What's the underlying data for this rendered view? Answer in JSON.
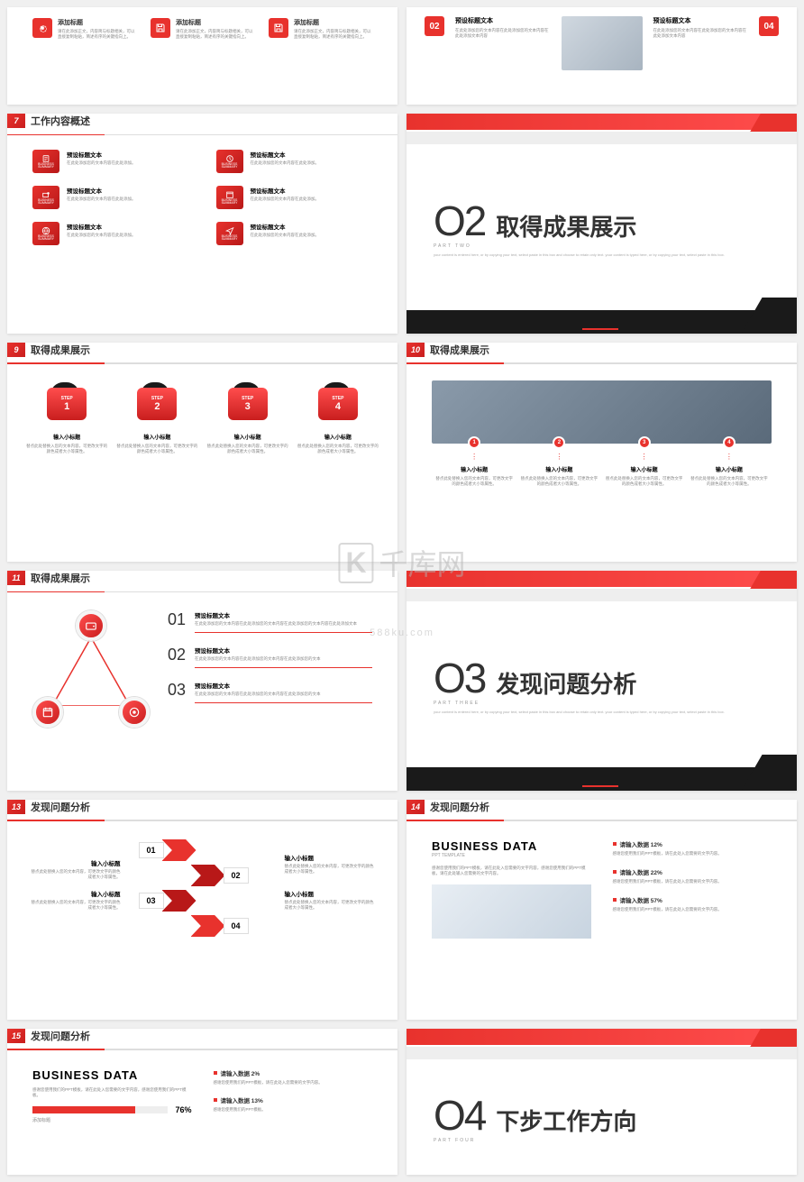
{
  "watermark": {
    "main": "千库网",
    "sub": "588ku.com",
    "logo": "K"
  },
  "colors": {
    "primary": "#e8322d",
    "dark": "#1a1a1a",
    "text": "#333",
    "muted": "#888"
  },
  "s5": {
    "icons": [
      {
        "title": "添加标题",
        "desc": "请在此添加正文，内容简与标题相关，可以直接复制粘贴，简述有序的关键指向上。"
      },
      {
        "title": "添加标题",
        "desc": "请在此添加正文，内容简与标题相关，可以直接复制粘贴，简述有序的关键指向上。"
      },
      {
        "title": "添加标题",
        "desc": "请在此添加正文，内容简与标题相关，可以直接复制粘贴，简述有序的关键指向上。"
      }
    ]
  },
  "s6": {
    "items": [
      {
        "n": "02",
        "t": "预设标题文本",
        "d": "在此处添加您的文本内容在此处添加您的文本内容在此处添加文本内容"
      },
      {
        "n": "04",
        "t": "预设标题文本",
        "d": "在此处添加您的文本内容在此处添加您的文本内容在此处添加文本内容"
      }
    ]
  },
  "s7": {
    "num": "7",
    "title": "工作内容概述",
    "items": [
      {
        "label": "BUSINESS SUMMARY",
        "t": "预设标题文本",
        "d": "在此处添加您的文本内容在此处添加。"
      },
      {
        "label": "BUSINESS SUMMARY",
        "t": "预设标题文本",
        "d": "在此处添加您的文本内容在此处添加。"
      },
      {
        "label": "BUSINESS SUMMARY",
        "t": "预设标题文本",
        "d": "在此处添加您的文本内容在此处添加。"
      },
      {
        "label": "BUSINESS SUMMARY",
        "t": "预设标题文本",
        "d": "在此处添加您的文本内容在此处添加。"
      },
      {
        "label": "BUSINESS SUMMARY",
        "t": "预设标题文本",
        "d": "在此处添加您的文本内容在此处添加。"
      },
      {
        "label": "BUSINESS SUMMARY",
        "t": "预设标题文本",
        "d": "在此处添加您的文本内容在此处添加。"
      }
    ]
  },
  "s8": {
    "num": "O2",
    "title": "取得成果展示",
    "part": "PART TWO",
    "desc": "your content is entered here, or by copying your text, select paste in this box and choose to retain only text. your content is typed here, or by copying your text, select paste in this box."
  },
  "s9": {
    "num": "9",
    "title": "取得成果展示",
    "steps": [
      {
        "label": "STEP",
        "n": "1",
        "t": "输入小标题",
        "d": "替点此处替换入您的文本内容，可更改文字的颜色成者大小等属性。"
      },
      {
        "label": "STEP",
        "n": "2",
        "t": "输入小标题",
        "d": "替点此处替换入您的文本内容，可更改文字的颜色成者大小等属性。"
      },
      {
        "label": "STEP",
        "n": "3",
        "t": "输入小标题",
        "d": "替点此处替换入您的文本内容，可更改文字的颜色成者大小等属性。"
      },
      {
        "label": "STEP",
        "n": "4",
        "t": "输入小标题",
        "d": "替点此处替换入您的文本内容，可更改文字的颜色成者大小等属性。"
      }
    ]
  },
  "s10": {
    "num": "10",
    "title": "取得成果展示",
    "cols": [
      {
        "n": "1",
        "t": "输入小标题",
        "d": "替点此处替换入您的文本内容，可更改文字的颜色成者大小等属性。"
      },
      {
        "n": "2",
        "t": "输入小标题",
        "d": "替点此处替换入您的文本内容，可更改文字的颜色成者大小等属性。"
      },
      {
        "n": "3",
        "t": "输入小标题",
        "d": "替点此处替换入您的文本内容，可更改文字的颜色成者大小等属性。"
      },
      {
        "n": "4",
        "t": "输入小标题",
        "d": "替点此处替换入您的文本内容，可更改文字的颜色成者大小等属性。"
      }
    ]
  },
  "s11": {
    "num": "11",
    "title": "取得成果展示",
    "items": [
      {
        "n": "01",
        "t": "预设标题文本",
        "d": "在此处添加您的文本内容在此处添加您的文本内容在此处添加您的文本内容在此处添加文本"
      },
      {
        "n": "02",
        "t": "预设标题文本",
        "d": "在此处添加您的文本内容在此处添加您的文本内容在此处添加您的文本"
      },
      {
        "n": "03",
        "t": "预设标题文本",
        "d": "在此处添加您的文本内容在此处添加您的文本内容在此处添加您的文本"
      }
    ]
  },
  "s12": {
    "num": "O3",
    "title": "发现问题分析",
    "part": "PART THREE",
    "desc": "your content is entered here, or by copying your text, select paste in this box and choose to retain only text. your content is typed here, or by copying your text, select paste in this box."
  },
  "s13": {
    "num": "13",
    "title": "发现问题分析",
    "left": [
      {
        "t": "输入小标题",
        "d": "替点此处替换入您的文本内容，可更改文字的颜色成者大小等属性。"
      },
      {
        "t": "输入小标题",
        "d": "替点此处替换入您的文本内容，可更改文字的颜色成者大小等属性。"
      }
    ],
    "arrows": [
      {
        "n": "01"
      },
      {
        "n": "02"
      },
      {
        "n": "03"
      },
      {
        "n": "04"
      }
    ],
    "right": [
      {
        "t": "输入小标题",
        "d": "替点此处替换入您的文本内容，可更改文字的颜色成者大小等属性。"
      },
      {
        "t": "输入小标题",
        "d": "替点此处替换入您的文本内容，可更改文字的颜色成者大小等属性。"
      }
    ]
  },
  "s14": {
    "num": "14",
    "title": "发现问题分析",
    "biz_title": "BUSINESS DATA",
    "biz_sub": "PPT TEMPLATE",
    "biz_desc": "感谢您使用我们的PPT模板，请在此处入您需要的文字内容，感谢您使用我们的PPT模板，请在此处输入您需要的文字内容。",
    "data": [
      {
        "t": "请输入数据 12%",
        "d": "感谢您使用我们的PPT模板，请在此处入您需要的文字内容。"
      },
      {
        "t": "请输入数据 22%",
        "d": "感谢您使用我们的PPT模板，请在此处入您需要的文字内容。"
      },
      {
        "t": "请输入数据 57%",
        "d": "感谢您使用我们的PPT模板，请在此处入您需要的文字内容。"
      }
    ]
  },
  "s15": {
    "num": "15",
    "title": "发现问题分析",
    "biz_title": "BUSINESS DATA",
    "biz_desc": "感谢您使用我们的PPT模板，请在此处入您需要的文字内容，感谢您使用我们的PPT模板。",
    "prog": [
      {
        "label": "添加标题",
        "pct": "76",
        "pct_label": "76%"
      }
    ],
    "data": [
      {
        "t": "请输入数据 2%",
        "d": "感谢您使用我们的PPT模板，请在此处入您需要的文字内容。"
      },
      {
        "t": "请输入数据 13%",
        "d": "感谢您使用我们的PPT模板。"
      }
    ]
  },
  "s16": {
    "num": "O4",
    "title": "下步工作方向",
    "part": "PART FOUR"
  }
}
